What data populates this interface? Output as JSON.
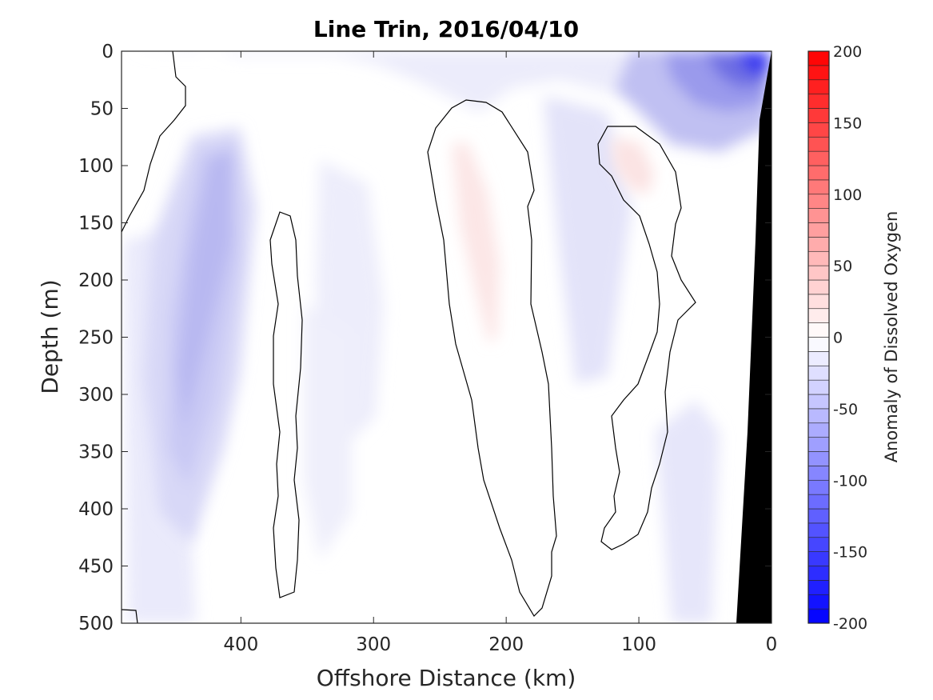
{
  "chart_data": {
    "type": "heatmap",
    "title": "Line Trin, 2016/04/10",
    "xlabel": "Offshore Distance (km)",
    "ylabel": "Depth (m)",
    "colorbar_label": "Anomaly of Dissolved Oxygen",
    "xlim": [
      490,
      0
    ],
    "ylim": [
      500,
      0
    ],
    "xticks": [
      "400",
      "300",
      "200",
      "100",
      "0"
    ],
    "xtick_values": [
      400,
      300,
      200,
      100,
      0
    ],
    "yticks": [
      "0",
      "50",
      "100",
      "150",
      "200",
      "250",
      "300",
      "350",
      "400",
      "450",
      "500"
    ],
    "ytick_values": [
      0,
      50,
      100,
      150,
      200,
      250,
      300,
      350,
      400,
      450,
      500
    ],
    "colorbar_ticks": [
      "200",
      "150",
      "100",
      "50",
      "0",
      "-50",
      "-100",
      "-150",
      "-200"
    ],
    "colorbar_tick_values": [
      200,
      150,
      100,
      50,
      0,
      -50,
      -100,
      -150,
      -200
    ],
    "clim": [
      -200,
      200
    ],
    "colormap": "blue-white-red",
    "colors": {
      "negative": "#0000ff",
      "zero": "#ffffff",
      "positive": "#ff0000",
      "bathymetry": "#000000"
    },
    "features": [
      {
        "kind": "negative",
        "x": 425,
        "y": 250,
        "value": -45
      },
      {
        "kind": "negative",
        "x": 40,
        "y": 20,
        "value": -130
      },
      {
        "kind": "negative",
        "x": 140,
        "y": 200,
        "value": -25
      },
      {
        "kind": "positive",
        "x": 215,
        "y": 150,
        "value": 5
      },
      {
        "kind": "positive",
        "x": 105,
        "y": 100,
        "value": 8
      }
    ]
  }
}
